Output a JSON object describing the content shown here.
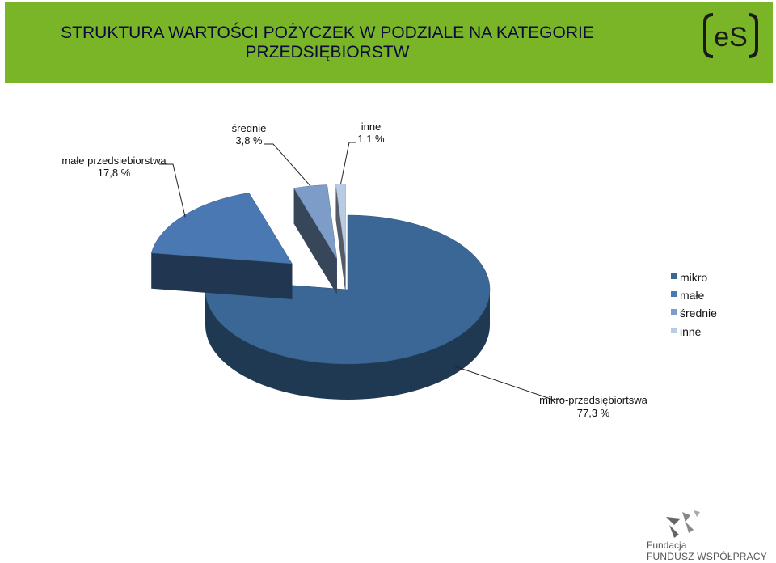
{
  "header": {
    "title_line1": "STRUKTURA WARTOŚCI POŻYCZEK W PODZIALE NA KATEGORIE",
    "title_line2": "PRZEDSIĘBIORSTW",
    "logo_text": "eS",
    "background_color": "#7ab527"
  },
  "chart_data": {
    "type": "pie",
    "style": "3d-exploded",
    "title": "STRUKTURA WARTOŚCI POŻYCZEK W PODZIALE NA KATEGORIE PRZEDSIĘBIORSTW",
    "legend_position": "right",
    "series": [
      {
        "key": "mikro",
        "legend": "mikro",
        "label": "mikro-przedsiębiortswa",
        "value_label": "77,3 %",
        "value": 77.3,
        "color": "#3a6796"
      },
      {
        "key": "male",
        "legend": "małe",
        "label": "małe przedsiebiorstwa",
        "value_label": "17,8 %",
        "value": 17.8,
        "color": "#4a78b3"
      },
      {
        "key": "srednie",
        "legend": "średnie",
        "label": "średnie",
        "value_label": "3,8 %",
        "value": 3.8,
        "color": "#7d9cc8"
      },
      {
        "key": "inne",
        "legend": "inne",
        "label": "inne",
        "value_label": "1,1 %",
        "value": 1.1,
        "color": "#b9cae3"
      }
    ]
  },
  "footer": {
    "line1": "Fundacja",
    "line2": "FUNDUSZ WSPÓŁPRACY"
  }
}
